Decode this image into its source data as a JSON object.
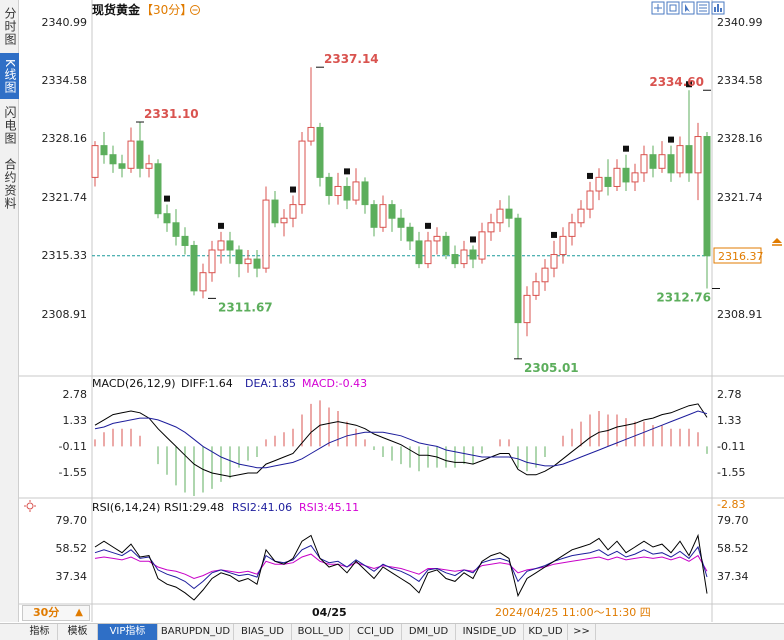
{
  "side_tabs": [
    {
      "label": "分时图",
      "active": false
    },
    {
      "label": "K线图",
      "active": true
    },
    {
      "label": "闪电图",
      "active": false
    },
    {
      "label": "合约资料",
      "active": false
    }
  ],
  "header": {
    "title": "现货黄金",
    "period": "【30分】",
    "period_icon": "circle-minus-icon"
  },
  "toolbar_icons": [
    "crosshair-icon",
    "expand-icon",
    "cursor-icon",
    "list-icon",
    "bar-chart-icon"
  ],
  "chart_data": {
    "type": "candlestick",
    "ylim": [
      2304.0,
      2343.0
    ],
    "price_ticks": [
      "2340.99",
      "2334.58",
      "2328.16",
      "2321.74",
      "2315.33",
      "2308.91"
    ],
    "current_price_label": "2316.37",
    "current_price": 2316.37,
    "annotations": [
      {
        "label": "2331.10",
        "value": 2331.1,
        "index": 5,
        "side": "high"
      },
      {
        "label": "2337.14",
        "value": 2337.14,
        "index": 25,
        "side": "high"
      },
      {
        "label": "2311.67",
        "value": 2311.67,
        "index": 13,
        "side": "low"
      },
      {
        "label": "2305.01",
        "value": 2305.01,
        "index": 47,
        "side": "low"
      },
      {
        "label": "2334.60",
        "value": 2334.6,
        "index": 68,
        "side": "high"
      },
      {
        "label": "2312.76",
        "value": 2312.76,
        "index": 69,
        "side": "low"
      }
    ],
    "x_label": "04/25",
    "cursor_label": "2024/04/25 11:00～11:30 四",
    "candles": [
      [
        2325.0,
        2328.5,
        2329.0,
        2324.0
      ],
      [
        2328.5,
        2327.5,
        2330.0,
        2326.5
      ],
      [
        2327.5,
        2326.5,
        2328.5,
        2325.5
      ],
      [
        2326.5,
        2326.0,
        2327.5,
        2325.0
      ],
      [
        2326.0,
        2329.0,
        2330.5,
        2325.5
      ],
      [
        2329.0,
        2326.0,
        2331.1,
        2325.0
      ],
      [
        2326.0,
        2326.5,
        2327.5,
        2325.0
      ],
      [
        2326.5,
        2321.0,
        2327.0,
        2320.5
      ],
      [
        2321.0,
        2320.0,
        2322.0,
        2319.0
      ],
      [
        2320.0,
        2318.5,
        2321.5,
        2317.5
      ],
      [
        2318.5,
        2317.5,
        2319.5,
        2316.5
      ],
      [
        2317.5,
        2312.5,
        2318.0,
        2312.0
      ],
      [
        2312.5,
        2314.5,
        2315.5,
        2311.67
      ],
      [
        2314.5,
        2317.0,
        2318.0,
        2313.5
      ],
      [
        2317.0,
        2318.0,
        2319.0,
        2315.5
      ],
      [
        2318.0,
        2317.0,
        2319.0,
        2315.5
      ],
      [
        2317.0,
        2315.5,
        2317.5,
        2314.0
      ],
      [
        2315.5,
        2316.0,
        2317.0,
        2314.5
      ],
      [
        2316.0,
        2315.0,
        2317.0,
        2314.0
      ],
      [
        2315.0,
        2322.5,
        2324.0,
        2314.5
      ],
      [
        2322.5,
        2320.0,
        2323.5,
        2319.5
      ],
      [
        2320.0,
        2320.5,
        2321.5,
        2318.5
      ],
      [
        2320.5,
        2322.0,
        2323.0,
        2319.5
      ],
      [
        2322.0,
        2329.0,
        2330.0,
        2321.0
      ],
      [
        2329.0,
        2330.5,
        2337.14,
        2328.5
      ],
      [
        2330.5,
        2325.0,
        2331.0,
        2324.0
      ],
      [
        2325.0,
        2323.0,
        2325.5,
        2322.0
      ],
      [
        2323.0,
        2324.0,
        2325.5,
        2322.0
      ],
      [
        2324.0,
        2322.5,
        2325.0,
        2321.5
      ],
      [
        2322.5,
        2324.5,
        2326.0,
        2322.0
      ],
      [
        2324.5,
        2322.0,
        2325.0,
        2321.0
      ],
      [
        2322.0,
        2319.5,
        2322.5,
        2318.5
      ],
      [
        2319.5,
        2322.0,
        2323.0,
        2319.0
      ],
      [
        2322.0,
        2320.5,
        2322.5,
        2319.0
      ],
      [
        2320.5,
        2319.5,
        2321.5,
        2318.0
      ],
      [
        2319.5,
        2318.0,
        2320.0,
        2317.0
      ],
      [
        2318.0,
        2315.5,
        2319.0,
        2315.0
      ],
      [
        2315.5,
        2318.0,
        2319.0,
        2315.0
      ],
      [
        2318.0,
        2318.5,
        2319.5,
        2316.5
      ],
      [
        2318.5,
        2316.5,
        2319.0,
        2316.0
      ],
      [
        2316.5,
        2315.5,
        2317.5,
        2315.0
      ],
      [
        2315.5,
        2317.0,
        2318.0,
        2315.0
      ],
      [
        2317.0,
        2316.0,
        2317.5,
        2315.0
      ],
      [
        2316.0,
        2319.0,
        2320.0,
        2315.5
      ],
      [
        2319.0,
        2320.0,
        2321.0,
        2318.0
      ],
      [
        2320.0,
        2321.5,
        2322.5,
        2319.0
      ],
      [
        2321.5,
        2320.5,
        2323.0,
        2319.5
      ],
      [
        2320.5,
        2309.0,
        2321.0,
        2305.01
      ],
      [
        2309.0,
        2312.0,
        2313.0,
        2307.5
      ],
      [
        2312.0,
        2313.5,
        2314.5,
        2311.5
      ],
      [
        2313.5,
        2315.0,
        2316.0,
        2312.5
      ],
      [
        2315.0,
        2316.5,
        2318.0,
        2314.0
      ],
      [
        2316.5,
        2318.5,
        2319.5,
        2315.5
      ],
      [
        2318.5,
        2320.0,
        2321.0,
        2317.5
      ],
      [
        2320.0,
        2321.5,
        2322.5,
        2319.5
      ],
      [
        2321.5,
        2323.5,
        2324.5,
        2320.5
      ],
      [
        2323.5,
        2325.0,
        2326.0,
        2322.5
      ],
      [
        2325.0,
        2324.0,
        2327.0,
        2323.0
      ],
      [
        2324.0,
        2326.0,
        2327.0,
        2323.5
      ],
      [
        2326.0,
        2324.5,
        2327.5,
        2323.5
      ],
      [
        2324.5,
        2325.5,
        2326.5,
        2323.5
      ],
      [
        2325.5,
        2327.5,
        2328.5,
        2324.5
      ],
      [
        2327.5,
        2326.0,
        2328.5,
        2325.0
      ],
      [
        2326.0,
        2327.5,
        2329.0,
        2325.5
      ],
      [
        2327.5,
        2325.5,
        2328.5,
        2324.5
      ],
      [
        2325.5,
        2328.5,
        2329.5,
        2325.0
      ],
      [
        2328.5,
        2325.5,
        2334.6,
        2324.5
      ],
      [
        2325.5,
        2329.5,
        2331.0,
        2322.5
      ],
      [
        2329.5,
        2316.37,
        2330.0,
        2312.76
      ]
    ],
    "markers": [
      8,
      14,
      22,
      28,
      37,
      42,
      51,
      55,
      59,
      64,
      66
    ],
    "macd": {
      "label": "MACD(26,12,9)",
      "diff_label": "DIFF:1.64",
      "dea_label": "DEA:1.85",
      "macd_label": "MACD:-0.43",
      "ticks": [
        "2.78",
        "1.33",
        "-0.11",
        "-1.55"
      ],
      "ylim": [
        -2.8,
        3.3
      ],
      "diff": [
        1.2,
        1.5,
        1.8,
        1.9,
        2.0,
        1.9,
        1.6,
        1.0,
        0.5,
        0.0,
        -0.5,
        -1.0,
        -1.3,
        -1.5,
        -1.6,
        -1.7,
        -1.6,
        -1.5,
        -1.5,
        -1.0,
        -0.8,
        -0.6,
        -0.4,
        0.2,
        0.8,
        1.2,
        1.3,
        1.4,
        1.3,
        1.2,
        1.0,
        0.7,
        0.5,
        0.3,
        0.1,
        -0.2,
        -0.5,
        -0.5,
        -0.6,
        -0.8,
        -0.9,
        -0.9,
        -1.0,
        -0.8,
        -0.6,
        -0.4,
        -0.4,
        -1.3,
        -1.6,
        -1.6,
        -1.4,
        -1.1,
        -0.7,
        -0.3,
        0.1,
        0.5,
        0.8,
        0.9,
        1.1,
        1.2,
        1.3,
        1.5,
        1.6,
        1.8,
        1.9,
        2.1,
        2.3,
        2.4,
        1.64
      ],
      "dea": [
        1.0,
        1.1,
        1.3,
        1.4,
        1.5,
        1.6,
        1.6,
        1.5,
        1.3,
        1.1,
        0.8,
        0.4,
        0.0,
        -0.3,
        -0.6,
        -0.8,
        -1.0,
        -1.1,
        -1.2,
        -1.2,
        -1.1,
        -1.0,
        -0.9,
        -0.7,
        -0.4,
        -0.1,
        0.2,
        0.4,
        0.6,
        0.7,
        0.8,
        0.8,
        0.8,
        0.7,
        0.6,
        0.4,
        0.2,
        0.1,
        0.0,
        -0.2,
        -0.3,
        -0.4,
        -0.5,
        -0.6,
        -0.6,
        -0.6,
        -0.6,
        -0.7,
        -0.9,
        -1.0,
        -1.1,
        -1.1,
        -1.0,
        -0.8,
        -0.6,
        -0.4,
        -0.2,
        0.0,
        0.2,
        0.4,
        0.6,
        0.8,
        1.0,
        1.2,
        1.4,
        1.6,
        1.8,
        2.0,
        1.85
      ]
    },
    "rsi": {
      "label": "RSI(6,14,24)",
      "rsi1_label": "RSI1:29.48",
      "rsi2_label": "RSI2:41.06",
      "rsi3_label": "RSI3:45.11",
      "ticks": [
        "79.70",
        "58.52",
        "37.34"
      ],
      "ylim": [
        25,
        85
      ],
      "rsi1": [
        62,
        66,
        62,
        58,
        64,
        55,
        56,
        40,
        36,
        34,
        30,
        25,
        32,
        40,
        44,
        42,
        38,
        40,
        36,
        60,
        52,
        50,
        54,
        66,
        70,
        54,
        48,
        50,
        44,
        52,
        46,
        40,
        48,
        44,
        40,
        36,
        30,
        44,
        46,
        40,
        38,
        44,
        40,
        52,
        56,
        58,
        54,
        28,
        40,
        44,
        48,
        52,
        56,
        60,
        62,
        64,
        68,
        60,
        66,
        58,
        62,
        66,
        62,
        64,
        58,
        66,
        56,
        70,
        29.48
      ],
      "rsi2": [
        58,
        60,
        58,
        56,
        60,
        54,
        55,
        46,
        43,
        41,
        38,
        33,
        38,
        44,
        46,
        44,
        42,
        43,
        41,
        56,
        52,
        51,
        53,
        60,
        63,
        54,
        51,
        52,
        48,
        53,
        49,
        45,
        50,
        47,
        45,
        42,
        38,
        46,
        47,
        44,
        42,
        46,
        44,
        51,
        53,
        54,
        52,
        38,
        45,
        47,
        49,
        52,
        54,
        56,
        57,
        58,
        60,
        56,
        59,
        55,
        57,
        60,
        57,
        58,
        55,
        59,
        54,
        62,
        41.06
      ],
      "rsi3": [
        54,
        55,
        54,
        53,
        55,
        52,
        52,
        48,
        46,
        45,
        43,
        40,
        42,
        45,
        46,
        45,
        44,
        45,
        43,
        52,
        50,
        50,
        51,
        55,
        57,
        52,
        50,
        50,
        48,
        51,
        49,
        47,
        49,
        48,
        47,
        45,
        43,
        47,
        47,
        46,
        45,
        46,
        45,
        49,
        50,
        51,
        50,
        44,
        46,
        47,
        48,
        50,
        51,
        52,
        53,
        54,
        55,
        53,
        55,
        53,
        54,
        55,
        54,
        55,
        53,
        55,
        52,
        56,
        45.11
      ],
      "cursor_tick": "-2.83"
    }
  },
  "period_selector": {
    "label": "30分"
  },
  "bottom_tabs": [
    {
      "label": "指标",
      "active": false
    },
    {
      "label": "模板",
      "active": false
    },
    {
      "label": "VIP指标",
      "active": true
    },
    {
      "label": "BARUPDN_UD",
      "active": false
    },
    {
      "label": "BIAS_UD",
      "active": false
    },
    {
      "label": "BOLL_UD",
      "active": false
    },
    {
      "label": "CCI_UD",
      "active": false
    },
    {
      "label": "DMI_UD",
      "active": false
    },
    {
      "label": "INSIDE_UD",
      "active": false
    },
    {
      "label": "KD_UD",
      "active": false
    },
    {
      "label": ">>",
      "active": false
    }
  ],
  "colors": {
    "up": "#d9534f",
    "down": "#5cae5c",
    "diff": "#000000",
    "dea": "#1d1d9c",
    "macd_label": "#d400d4",
    "rsi1": "#000000",
    "rsi2": "#1d1d9c",
    "rsi3": "#c800c8",
    "accent": "#e07b00",
    "current_line": "#1a9a9a"
  }
}
